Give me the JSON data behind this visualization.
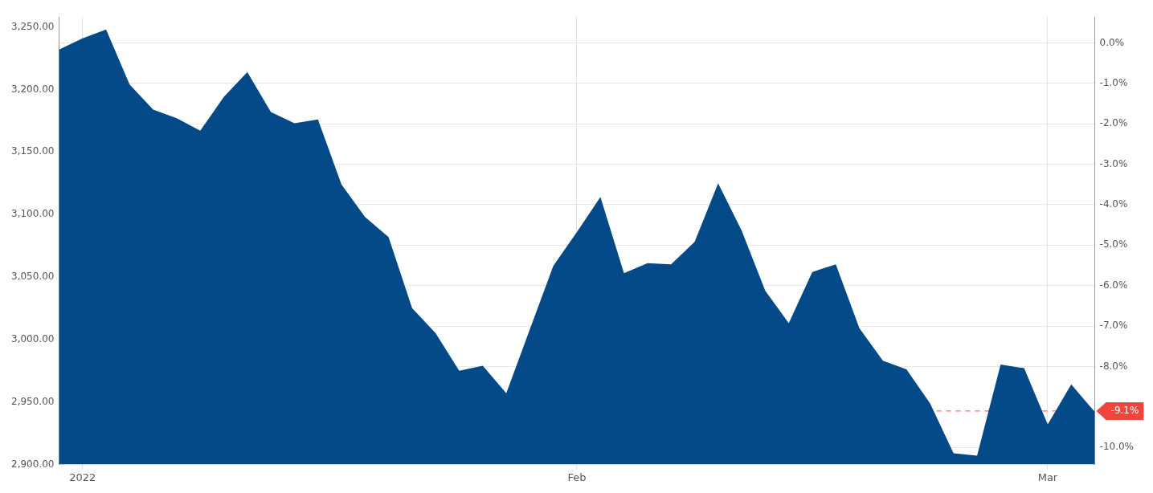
{
  "chart_data": {
    "type": "area",
    "categories": [
      null,
      "2022",
      null,
      null,
      null,
      null,
      null,
      null,
      null,
      null,
      null,
      null,
      null,
      null,
      null,
      null,
      null,
      null,
      null,
      null,
      null,
      null,
      "Feb",
      null,
      null,
      null,
      null,
      null,
      null,
      null,
      null,
      null,
      null,
      null,
      null,
      null,
      null,
      null,
      null,
      null,
      null,
      null,
      "Mar",
      null,
      null
    ],
    "series": [
      {
        "color": "#044a89",
        "values": [
          3232,
          3241,
          3248,
          3204,
          3184,
          3177,
          3167,
          3194,
          3214,
          3182,
          3173,
          3176,
          3124,
          3098,
          3082,
          3025,
          3005,
          2975,
          2979,
          2957,
          3008,
          3059,
          3086,
          3114,
          3053,
          3061,
          3060,
          3078,
          3125,
          3087,
          3039,
          3013,
          3054,
          3060,
          3009,
          2983,
          2976,
          2949,
          2909,
          2907,
          2980,
          2977,
          2932,
          2964,
          2942
        ]
      }
    ],
    "ylim": [
      2900,
      3258
    ],
    "yticks": [
      {
        "value": 2900,
        "label": "2,900.00"
      },
      {
        "value": 2950,
        "label": "2,950.00"
      },
      {
        "value": 3000,
        "label": "3,000.00"
      },
      {
        "value": 3050,
        "label": "3,050.00"
      },
      {
        "value": 3100,
        "label": "3,100.00"
      },
      {
        "value": 3150,
        "label": "3,150.00"
      },
      {
        "value": 3200,
        "label": "3,200.00"
      },
      {
        "value": 3250,
        "label": "3,250.00"
      }
    ],
    "y2lim": [
      -10.42,
      0.64
    ],
    "y2ticks": [
      {
        "value": 0,
        "label": "0.0%"
      },
      {
        "value": -1,
        "label": "-1.0%"
      },
      {
        "value": -2,
        "label": "-2.0%"
      },
      {
        "value": -3,
        "label": "-3.0%"
      },
      {
        "value": -4,
        "label": "-4.0%"
      },
      {
        "value": -5,
        "label": "-5.0%"
      },
      {
        "value": -6,
        "label": "-6.0%"
      },
      {
        "value": -7,
        "label": "-7.0%"
      },
      {
        "value": -8,
        "label": "-8.0%"
      },
      {
        "value": -10,
        "label": "-10.0%"
      }
    ],
    "ref_lines": [
      {
        "axis": "y2",
        "value": -9.1,
        "label": "-9.1%",
        "color": "#f0453a",
        "line_style": "dashed"
      }
    ],
    "grid": true,
    "legend": false
  }
}
